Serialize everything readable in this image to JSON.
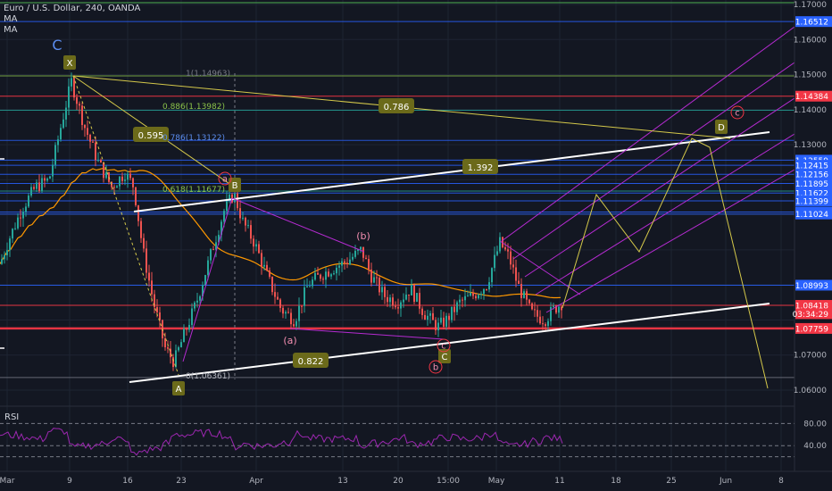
{
  "legend": {
    "title": "Euro / U.S. Dollar, 240, OANDA",
    "ma1": "MA",
    "ma2": "MA"
  },
  "rsi_label": "RSI",
  "colors": {
    "background": "#131722",
    "grid": "#1e2433",
    "candle_up": "#26a69a",
    "candle_down": "#ef5350",
    "price_tag": "#f23645",
    "blue_line": "#2962ff",
    "green_line": "#26a69a",
    "pitchfork": "#b52bd1",
    "yellow": "#d4c84a",
    "rsi": "#9c27b0"
  },
  "chart_data": {
    "type": "candlestick",
    "symbol": "Euro / U.S. Dollar",
    "interval": "240",
    "source": "OANDA",
    "ylim": [
      1.057,
      1.172
    ],
    "y_axis_ticks": [
      "1.17000",
      "1.16000",
      "1.15000",
      "1.14000",
      "1.13000",
      "1.07000",
      "1.06000"
    ],
    "x_axis_ticks": [
      "Mar",
      "9",
      "16",
      "23",
      "Apr",
      "13",
      "20",
      "15:00",
      "May",
      "11",
      "18",
      "25",
      "Jun",
      "8"
    ],
    "price_tags": [
      {
        "value": 1.16512,
        "label": "1.16512",
        "color": "#2962ff"
      },
      {
        "value": 1.14384,
        "label": "1.14384",
        "color": "#f23645"
      },
      {
        "value": 1.12559,
        "label": "1.12559",
        "color": "#2962ff"
      },
      {
        "value": 1.12415,
        "label": "1.12415",
        "color": "#2962ff"
      },
      {
        "value": 1.12156,
        "label": "1.12156",
        "color": "#2962ff"
      },
      {
        "value": 1.11895,
        "label": "1.11895",
        "color": "#2962ff"
      },
      {
        "value": 1.11622,
        "label": "1.11622",
        "color": "#2962ff"
      },
      {
        "value": 1.11399,
        "label": "1.11399",
        "color": "#2962ff"
      },
      {
        "value": 1.1108,
        "label": "1.11080",
        "color": "#2962ff"
      },
      {
        "value": 1.11024,
        "label": "1.11024",
        "color": "#2962ff"
      },
      {
        "value": 1.08993,
        "label": "1.08993",
        "color": "#2962ff"
      },
      {
        "value": 1.08418,
        "label": "1.08418",
        "color": "#f23645"
      },
      {
        "value": 1.0818,
        "label": "03:34:29",
        "color": "#f23645"
      },
      {
        "value": 1.07759,
        "label": "1.07759",
        "color": "#f23645"
      }
    ],
    "fib_levels": [
      {
        "ratio": "1",
        "price": "(1.14963)",
        "text": "1(1.14963)"
      },
      {
        "ratio": "0.886",
        "price": "(1.13982)",
        "text": "0.886(1.13982)"
      },
      {
        "ratio": "0.786",
        "price": "(1.13122)",
        "text": "0.786(1.13122)"
      },
      {
        "ratio": "0.618",
        "price": "(1.11677)",
        "text": "0.618(1.11677)"
      },
      {
        "ratio": "0",
        "price": "(1.06361)",
        "text": "0(1.06361)"
      }
    ],
    "wave_labels": [
      "C",
      "X",
      "A",
      "B",
      "C",
      "D",
      "a",
      "(a)",
      "(b)",
      "b",
      "c",
      "c"
    ],
    "ratio_labels": [
      "0.595",
      "0.786",
      "1.392",
      "0.822"
    ],
    "rsi": {
      "label": "RSI",
      "levels": [
        "80.00",
        "40.00",
        "20.00"
      ],
      "ylim": [
        0,
        100
      ]
    }
  }
}
